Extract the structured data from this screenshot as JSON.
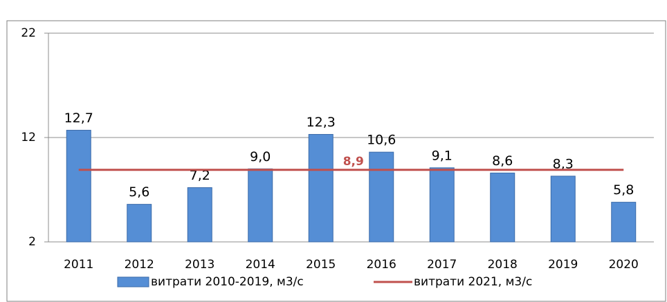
{
  "chart_data": {
    "type": "bar",
    "categories": [
      "2011",
      "2012",
      "2013",
      "2014",
      "2015",
      "2016",
      "2017",
      "2018",
      "2019",
      "2020"
    ],
    "series": [
      {
        "name": "витрати 2010-2019, м3/с",
        "color": "#558ed5",
        "type": "bar",
        "values": [
          12.7,
          5.6,
          7.2,
          9.0,
          12.3,
          10.6,
          9.1,
          8.6,
          8.3,
          5.8
        ],
        "value_labels": [
          "12,7",
          "5,6",
          "7,2",
          "9,0",
          "12,3",
          "10,6",
          "9,1",
          "8,6",
          "8,3",
          "5,8"
        ]
      },
      {
        "name": "витрати 2021, м3/с",
        "color": "#c0504d",
        "type": "line",
        "values": [
          8.9,
          8.9,
          8.9,
          8.9,
          8.9,
          8.9,
          8.9,
          8.9,
          8.9,
          8.9
        ],
        "value_labels": [
          null,
          null,
          null,
          null,
          "8,9",
          null,
          null,
          null,
          null,
          null
        ]
      }
    ],
    "ylim": [
      2,
      22
    ],
    "yticks": [
      2,
      12,
      22
    ],
    "grid": true,
    "legend": "bottom"
  }
}
